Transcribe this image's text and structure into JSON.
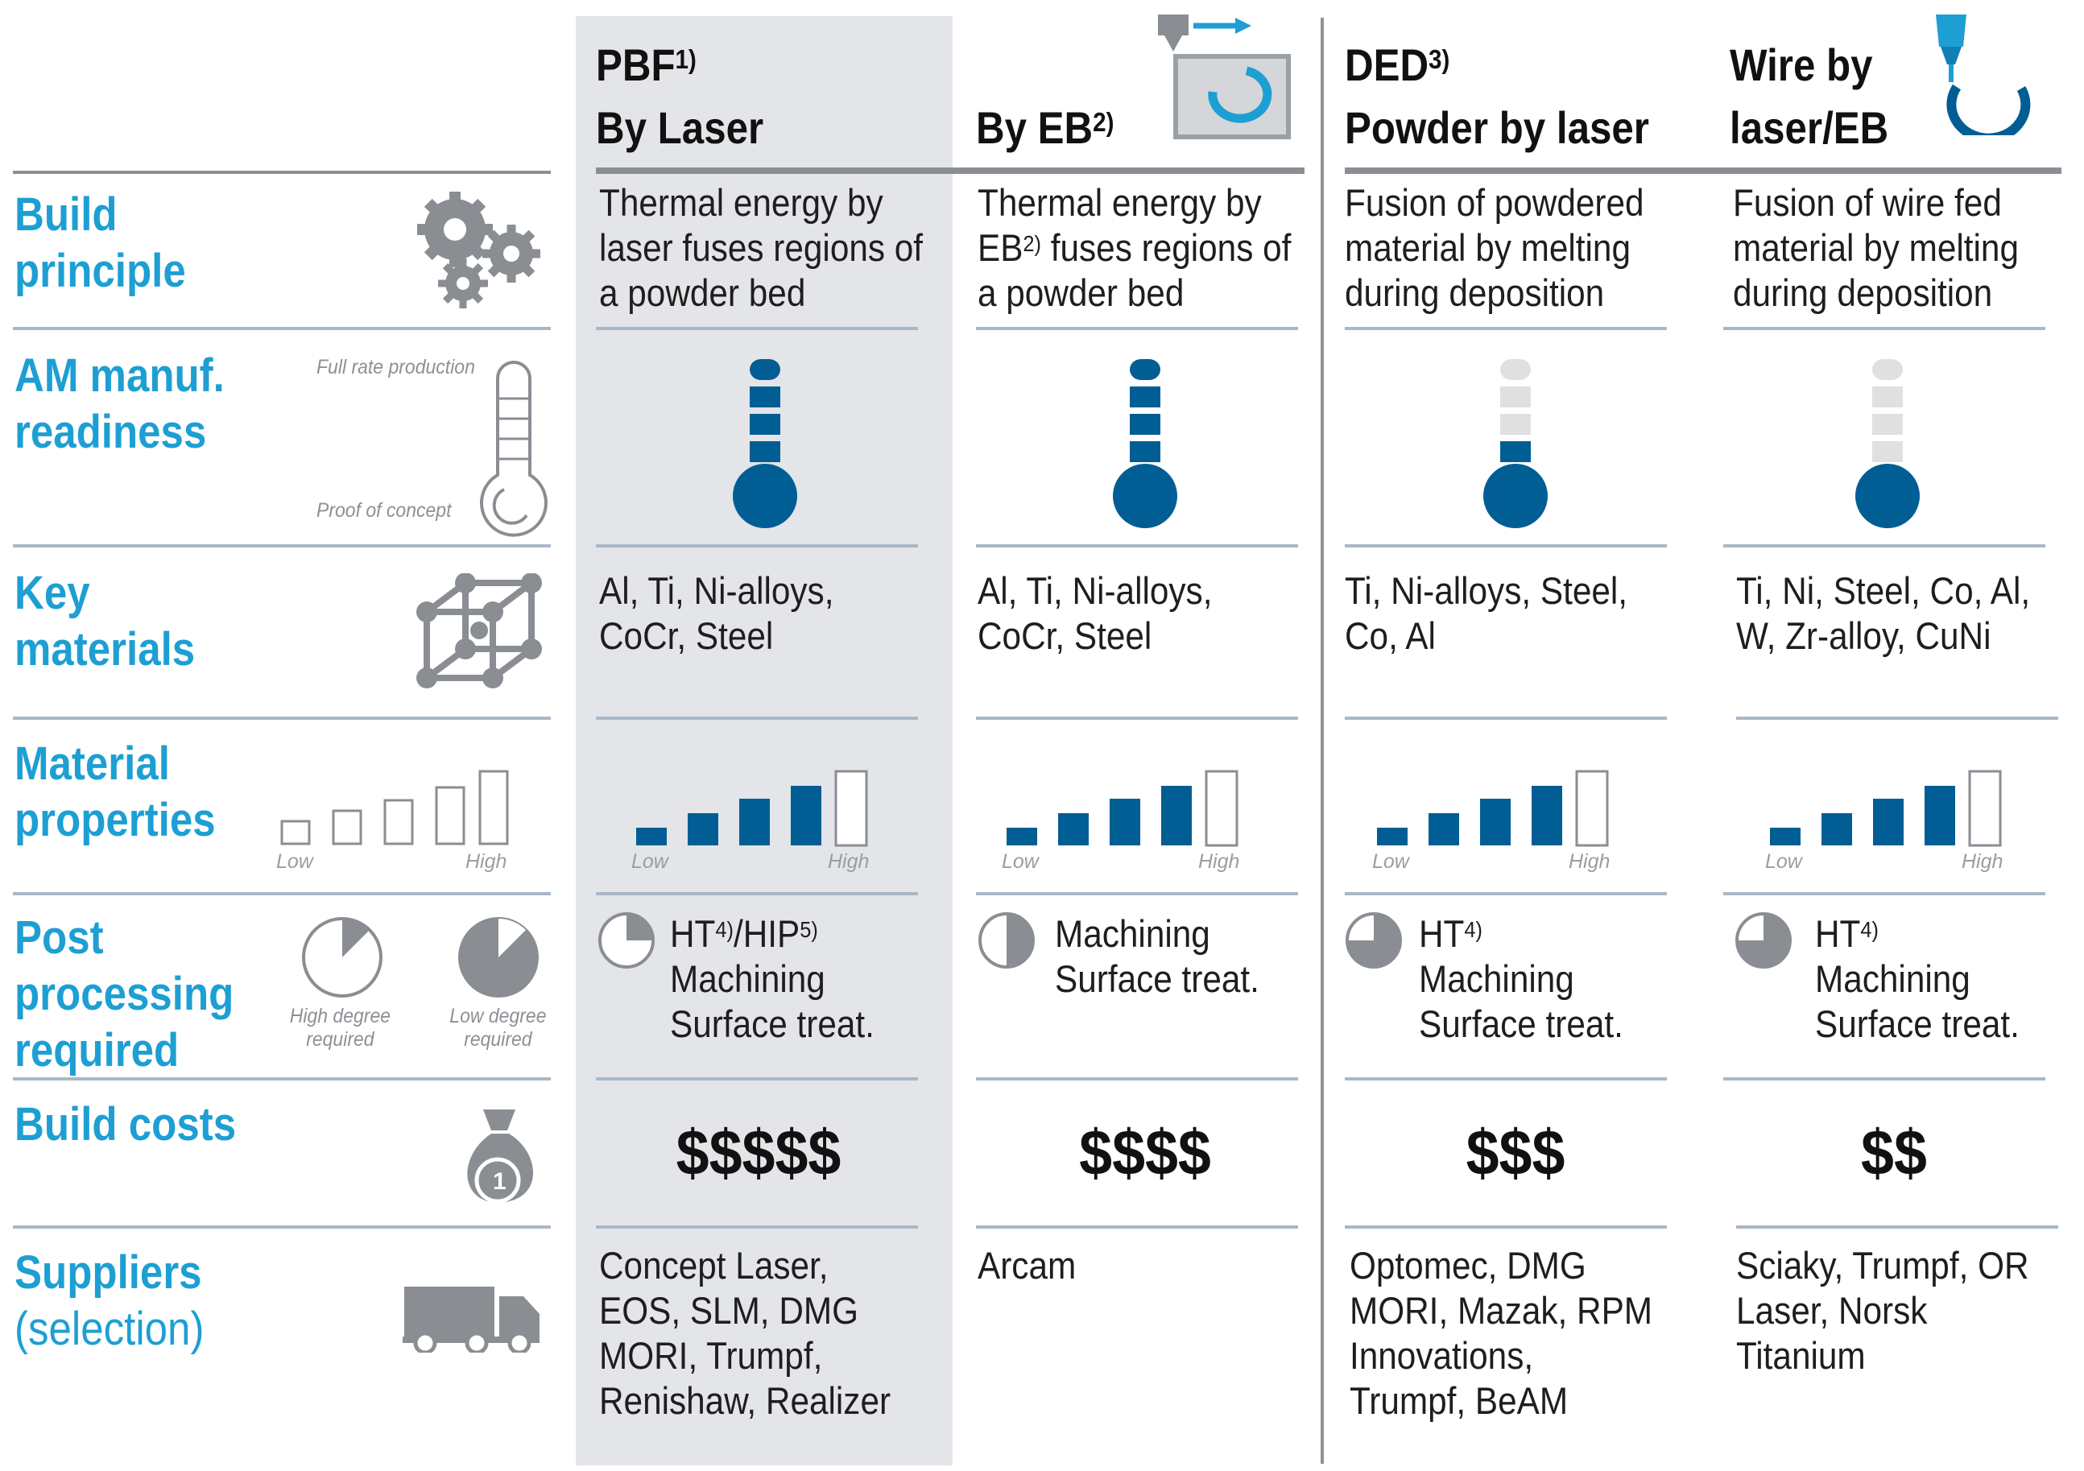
{
  "columns": [
    {
      "id": "pbf_laser",
      "title_line1": "PBF",
      "title_sup1": "1)",
      "title_line2": "By Laser",
      "build_principle": [
        "Thermal energy by",
        "laser fuses regions of",
        "a powder bed"
      ],
      "readiness_level": 5,
      "readiness_max": 5,
      "materials": [
        "Al, Ti, Ni-alloys,",
        "CoCr, Steel"
      ],
      "material_properties": 4,
      "material_properties_max": 5,
      "post_processing_fraction": 0.25,
      "post_processing": [
        "HT4)/HIP5)",
        "Machining",
        "Surface treat."
      ],
      "cost": "$$$$$",
      "suppliers": [
        "Concept Laser,",
        "EOS, SLM, DMG",
        "MORI, Trumpf,",
        "Renishaw, Realizer"
      ]
    },
    {
      "id": "pbf_eb",
      "title_line1": "",
      "title_sup1": "",
      "title_line2": "By EB",
      "title_sup2": "2)",
      "build_principle": [
        "Thermal energy by",
        "EB2) fuses regions of",
        "a powder bed"
      ],
      "readiness_level": 5,
      "readiness_max": 5,
      "materials": [
        "Al, Ti, Ni-alloys,",
        "CoCr, Steel"
      ],
      "material_properties": 4,
      "material_properties_max": 5,
      "post_processing_fraction": 0.5,
      "post_processing": [
        "Machining",
        "Surface treat."
      ],
      "cost": "$$$$",
      "suppliers": [
        "Arcam"
      ]
    },
    {
      "id": "ded_powder",
      "title_line1": "DED",
      "title_sup1": "3)",
      "title_line2": "Powder by laser",
      "build_principle": [
        "Fusion of powdered",
        "material by melting",
        "during deposition"
      ],
      "readiness_level": 2,
      "readiness_max": 5,
      "materials": [
        "Ti, Ni-alloys, Steel,",
        "Co, Al"
      ],
      "material_properties": 4,
      "material_properties_max": 5,
      "post_processing_fraction": 0.75,
      "post_processing": [
        "HT4)",
        "Machining",
        "Surface treat."
      ],
      "cost": "$$$",
      "suppliers": [
        "Optomec, DMG",
        "MORI, Mazak, RPM",
        "Innovations,",
        "Trumpf, BeAM"
      ]
    },
    {
      "id": "ded_wire",
      "title_line1": "Wire by",
      "title_sup1": "",
      "title_line2": "laser/EB",
      "build_principle": [
        "Fusion of wire fed",
        "material by melting",
        "during deposition"
      ],
      "readiness_level": 1,
      "readiness_max": 5,
      "materials": [
        "Ti, Ni, Steel, Co, Al,",
        "W, Zr-alloy, CuNi"
      ],
      "material_properties": 4,
      "material_properties_max": 5,
      "post_processing_fraction": 0.75,
      "post_processing": [
        "HT4)",
        "Machining",
        "Surface treat."
      ],
      "cost": "$$",
      "suppliers": [
        "Sciaky, Trumpf, OR",
        "Laser, Norsk",
        "Titanium"
      ]
    }
  ],
  "rows": {
    "build_principle": {
      "line1": "Build",
      "line2": "principle",
      "icon": "gears-icon"
    },
    "readiness": {
      "line1": "AM manuf.",
      "line2": "readiness",
      "icon": "thermometer-icon",
      "top_note": "Full rate production",
      "bottom_note": "Proof of concept"
    },
    "materials": {
      "line1": "Key",
      "line2": "materials",
      "icon": "lattice-icon"
    },
    "properties": {
      "line1": "Material",
      "line2": "properties",
      "icon": "bars-icon",
      "low": "Low",
      "high": "High"
    },
    "post": {
      "line1": "Post",
      "line2": "processing",
      "line3": "required",
      "icon": "pie-icon",
      "high_note_1": "High degree",
      "high_note_2": "required",
      "low_note_1": "Low degree",
      "low_note_2": "required"
    },
    "costs": {
      "line1": "Build costs",
      "icon": "money-bag-icon"
    },
    "suppliers": {
      "line1": "Suppliers",
      "line2": "(selection)",
      "icon": "truck-icon"
    }
  },
  "colors": {
    "accent": "#1d9fd3",
    "fill": "#005e94",
    "empty": "#e0e0e0",
    "shade": "#e3e5e8"
  }
}
